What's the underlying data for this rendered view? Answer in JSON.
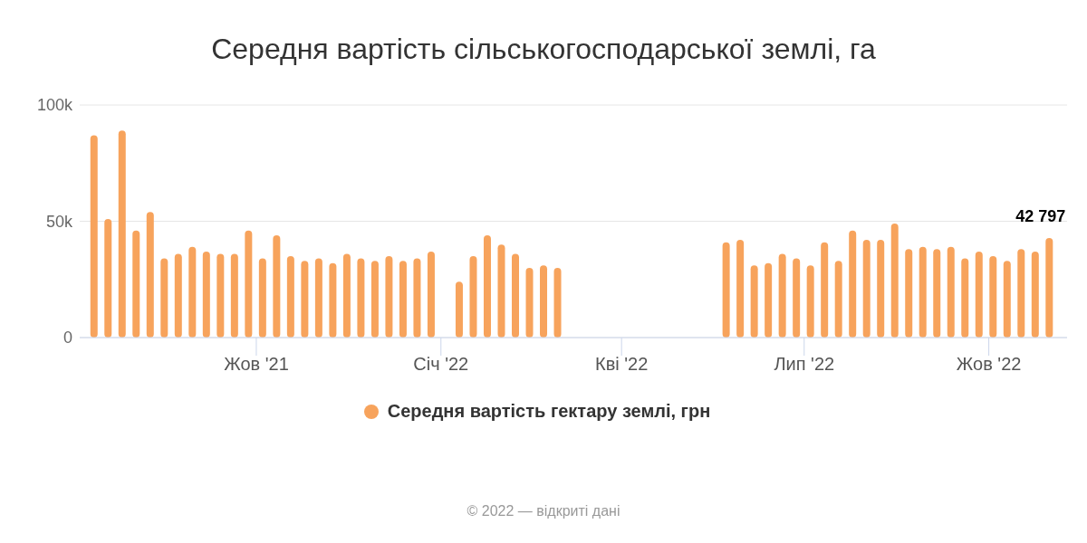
{
  "chart_data": {
    "type": "bar",
    "title": "Середня вартість сільськогосподарської землі, га",
    "x": [
      "2021-07-12",
      "2021-07-19",
      "2021-07-26",
      "2021-08-02",
      "2021-08-09",
      "2021-08-16",
      "2021-08-23",
      "2021-08-30",
      "2021-09-06",
      "2021-09-13",
      "2021-09-20",
      "2021-09-27",
      "2021-10-04",
      "2021-10-11",
      "2021-10-18",
      "2021-10-25",
      "2021-11-01",
      "2021-11-08",
      "2021-11-15",
      "2021-11-22",
      "2021-11-29",
      "2021-12-06",
      "2021-12-13",
      "2021-12-20",
      "2021-12-27",
      "2022-01-10",
      "2022-01-17",
      "2022-01-24",
      "2022-01-31",
      "2022-02-07",
      "2022-02-14",
      "2022-02-21",
      "2022-02-28",
      "2022-05-23",
      "2022-05-30",
      "2022-06-06",
      "2022-06-13",
      "2022-06-20",
      "2022-06-27",
      "2022-07-04",
      "2022-07-11",
      "2022-07-18",
      "2022-07-25",
      "2022-08-01",
      "2022-08-08",
      "2022-08-15",
      "2022-08-22",
      "2022-08-29",
      "2022-09-05",
      "2022-09-12",
      "2022-09-19",
      "2022-09-26",
      "2022-10-03",
      "2022-10-10",
      "2022-10-17",
      "2022-10-24",
      "2022-10-31"
    ],
    "series": [
      {
        "name": "Середня вартість гектару землі, грн",
        "color": "#f7a35c",
        "values": [
          87000,
          51000,
          89000,
          46000,
          54000,
          34000,
          36000,
          39000,
          37000,
          36000,
          36000,
          46000,
          34000,
          44000,
          35000,
          33000,
          34000,
          32000,
          36000,
          34000,
          33000,
          35000,
          33000,
          34000,
          37000,
          24000,
          35000,
          44000,
          40000,
          36000,
          30000,
          31000,
          30000,
          41000,
          42000,
          31000,
          32000,
          36000,
          34000,
          31000,
          41000,
          33000,
          46000,
          42000,
          42000,
          49000,
          38000,
          39000,
          38000,
          39000,
          34000,
          37000,
          35000,
          33000,
          38000,
          37000,
          42797
        ],
        "value_labels": [
          null,
          null,
          null,
          null,
          null,
          null,
          null,
          null,
          null,
          null,
          null,
          null,
          null,
          null,
          null,
          null,
          null,
          null,
          null,
          null,
          null,
          null,
          null,
          null,
          null,
          null,
          null,
          null,
          null,
          null,
          null,
          null,
          null,
          null,
          null,
          null,
          null,
          null,
          null,
          null,
          null,
          null,
          null,
          null,
          null,
          null,
          null,
          null,
          null,
          null,
          null,
          null,
          null,
          null,
          null,
          null,
          "42 797"
        ]
      }
    ],
    "xlim": [
      "2021-07-05",
      "2022-11-09"
    ],
    "xticks": [
      {
        "value": "2021-10-01",
        "label": "Жов '21"
      },
      {
        "value": "2022-01-01",
        "label": "Січ '22"
      },
      {
        "value": "2022-04-01",
        "label": "Кві '22"
      },
      {
        "value": "2022-07-01",
        "label": "Лип '22"
      },
      {
        "value": "2022-10-01",
        "label": "Жов '22"
      }
    ],
    "ylim": [
      0,
      100000
    ],
    "yticks": [
      {
        "value": 0,
        "label": "0"
      },
      {
        "value": 50000,
        "label": "50k"
      },
      {
        "value": 100000,
        "label": "100k"
      }
    ],
    "grid": "y",
    "legend": "bottom",
    "marker": "circle",
    "annotations": [
      "© 2022 — відкриті дані"
    ]
  }
}
